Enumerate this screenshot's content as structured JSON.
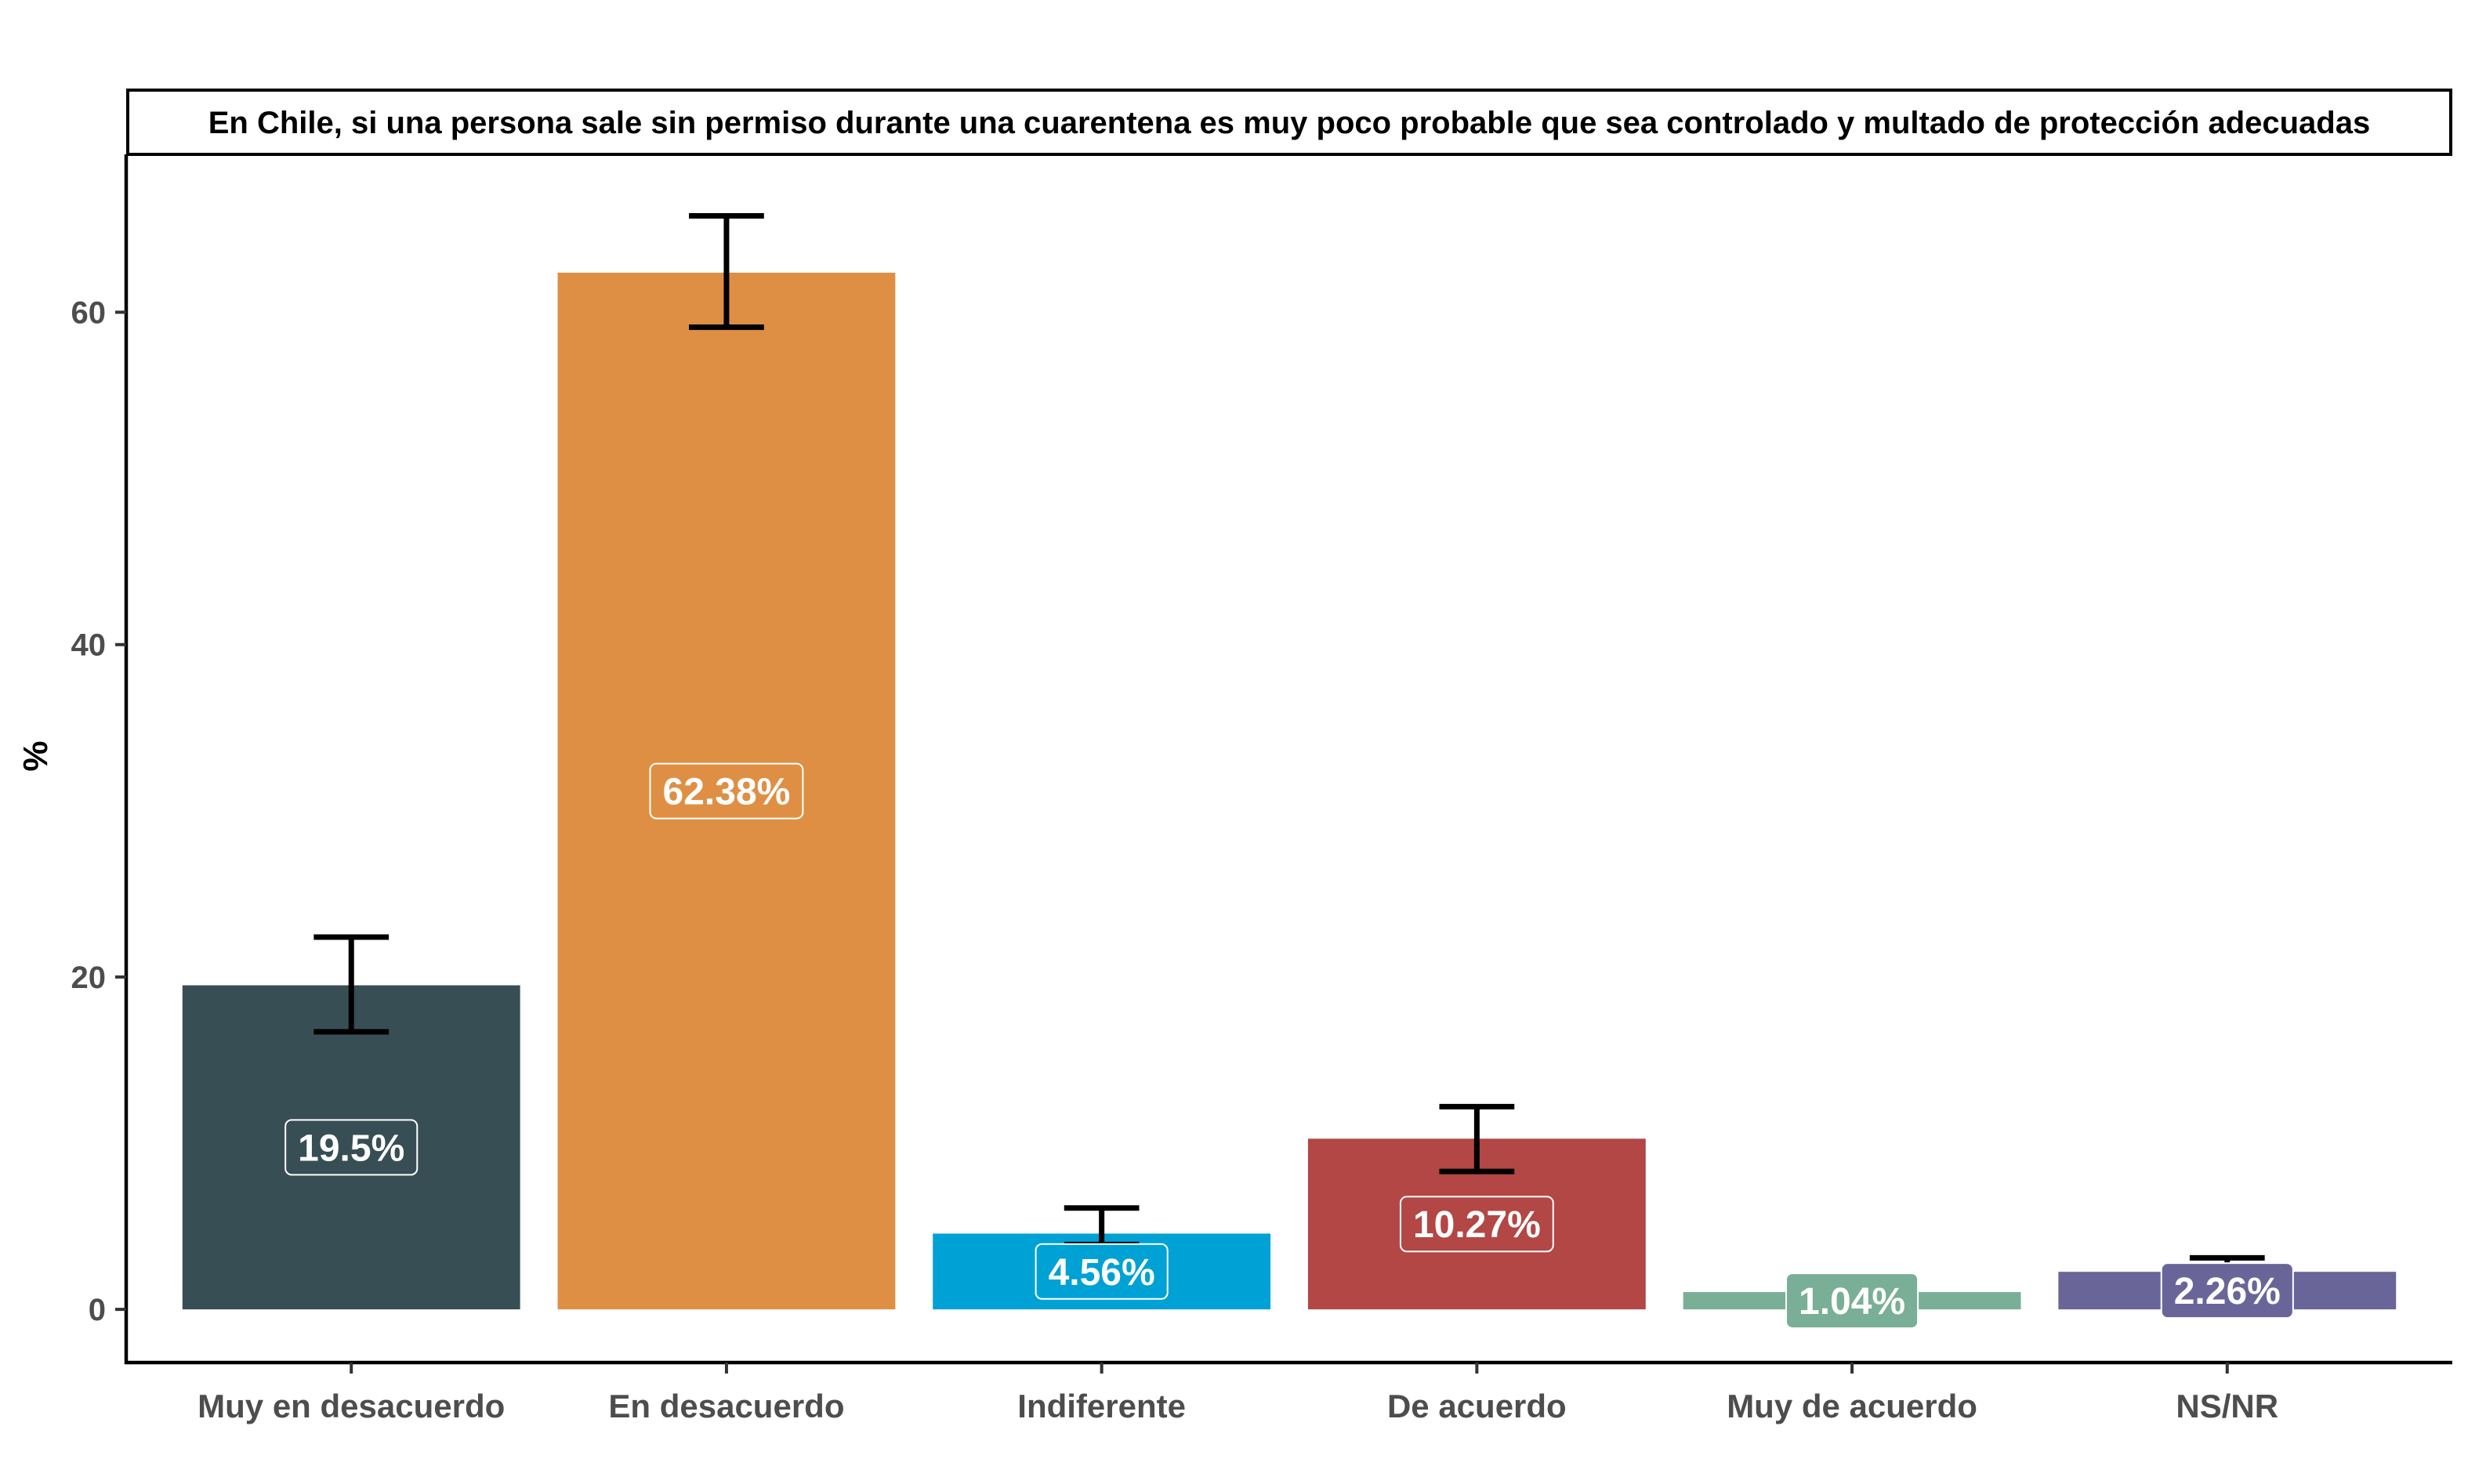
{
  "chart_data": {
    "type": "bar",
    "title": "En Chile, si una persona sale sin permiso durante una cuarentena es muy poco probable que sea controlado y multado de protección adecuadas",
    "xlabel": "",
    "ylabel": "%",
    "ylim": [
      -3.2,
      69.5
    ],
    "yticks": [
      0,
      20,
      40,
      60
    ],
    "ytick_labels": [
      "0",
      "20",
      "40",
      "60"
    ],
    "grid": false,
    "legend": "none",
    "categories": [
      "Muy en desacuerdo",
      "En desacuerdo",
      "Indiferente",
      "De acuerdo",
      "Muy de acuerdo",
      "NS/NR"
    ],
    "values": [
      19.5,
      62.38,
      4.56,
      10.27,
      1.04,
      2.26
    ],
    "value_labels": [
      "19.5%",
      "62.38%",
      "4.56%",
      "10.27%",
      "1.04%",
      "2.26%"
    ],
    "error_low": [
      16.7,
      59.1,
      3.9,
      8.3,
      null,
      null
    ],
    "error_high": [
      22.4,
      65.8,
      6.1,
      12.2,
      null,
      3.1
    ],
    "colors": [
      "#374e55",
      "#df8f44",
      "#00a1d5",
      "#b24745",
      "#79af97",
      "#6a6599"
    ]
  }
}
